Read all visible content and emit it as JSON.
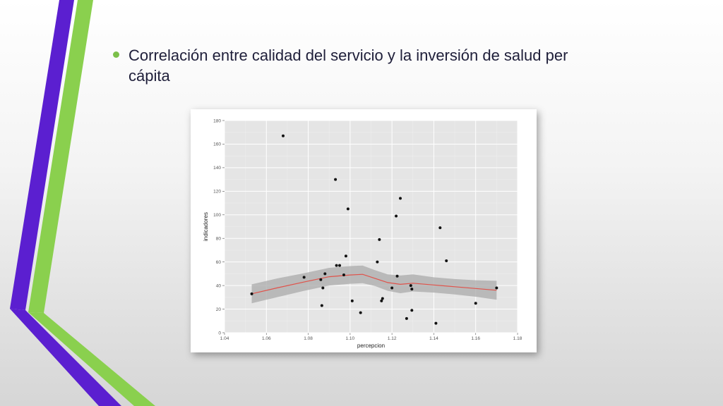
{
  "slide": {
    "bullet_text": "Correlación entre calidad del servicio y la inversión de salud per cápita",
    "colors": {
      "purple_stripe": "#5b1fd0",
      "green_stripe": "#8ad04e",
      "bullet": "#7cc04a",
      "text": "#1f1f3a"
    }
  },
  "chart_data": {
    "type": "scatter",
    "title": "",
    "xlabel": "percepcion",
    "ylabel": "indicadores",
    "xlim": [
      1.04,
      1.18
    ],
    "ylim": [
      0,
      180
    ],
    "xticks": [
      "1.04",
      "1.06",
      "1.08",
      "1.10",
      "1.12",
      "1.14",
      "1.16",
      "1.18"
    ],
    "yticks": [
      "0",
      "20",
      "40",
      "60",
      "80",
      "100",
      "120",
      "140",
      "160",
      "180"
    ],
    "grid": true,
    "points": {
      "x": [
        1.053,
        1.068,
        1.078,
        1.086,
        1.0865,
        1.087,
        1.088,
        1.093,
        1.0935,
        1.095,
        1.097,
        1.098,
        1.099,
        1.101,
        1.105,
        1.113,
        1.114,
        1.115,
        1.1155,
        1.12,
        1.122,
        1.1225,
        1.124,
        1.127,
        1.129,
        1.1295,
        1.1295,
        1.141,
        1.143,
        1.146,
        1.16,
        1.17
      ],
      "y": [
        33,
        167,
        47,
        45,
        23,
        38,
        50,
        130,
        57,
        57,
        49,
        65,
        105,
        27,
        17,
        60,
        79,
        27,
        29,
        38,
        99,
        48,
        114,
        12,
        40,
        19,
        37,
        8,
        89,
        61,
        25,
        38
      ]
    },
    "trend": {
      "color": "#e0524a",
      "band_color": "#a9a9a9",
      "x": [
        1.053,
        1.065,
        1.078,
        1.09,
        1.1,
        1.106,
        1.112,
        1.118,
        1.124,
        1.13,
        1.14,
        1.15,
        1.16,
        1.17
      ],
      "y": [
        33,
        38,
        43,
        47.5,
        49,
        49.5,
        46,
        42.5,
        41,
        42,
        40.5,
        39,
        37.5,
        36
      ],
      "lower": [
        25,
        30,
        35.5,
        40,
        41.5,
        42,
        39.5,
        35.5,
        33.5,
        35,
        34,
        32.5,
        30.5,
        28
      ],
      "upper": [
        41,
        46,
        50.5,
        55,
        56.5,
        57,
        53,
        49.5,
        48.5,
        49.5,
        47,
        45.5,
        44.5,
        44
      ]
    }
  }
}
